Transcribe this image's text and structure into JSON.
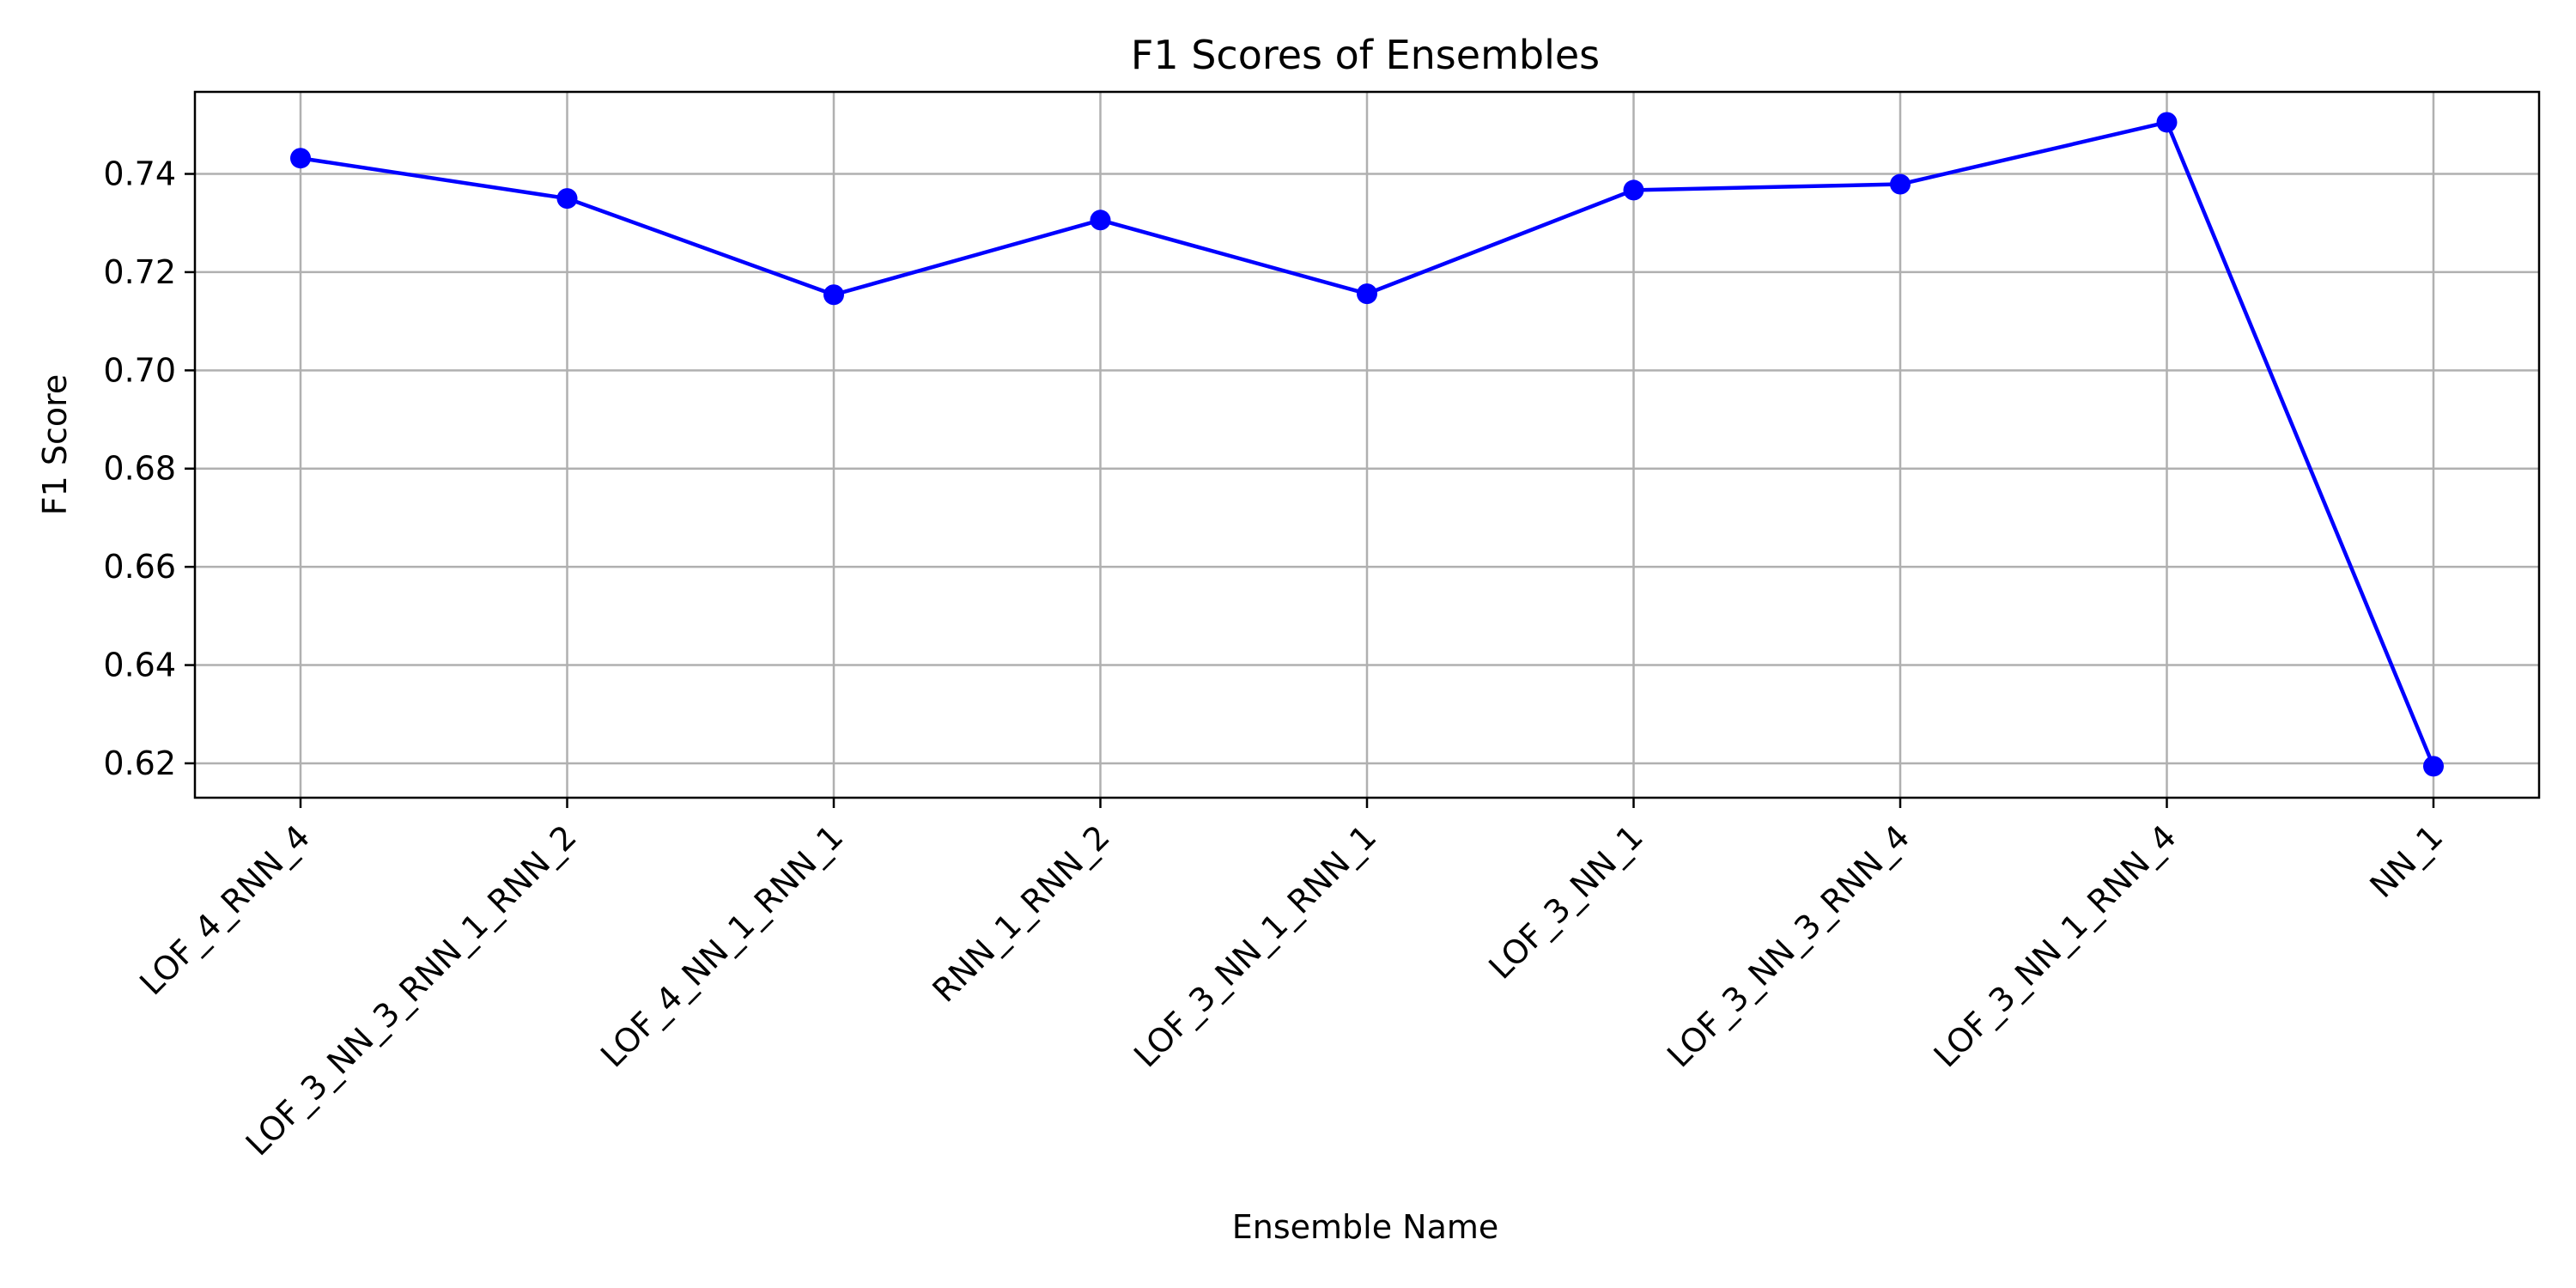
{
  "chart_data": {
    "type": "line",
    "title": "F1 Scores of Ensembles",
    "xlabel": "Ensemble Name",
    "ylabel": "F1 Score",
    "categories": [
      "LOF_4_RNN_4",
      "LOF_3_NN_3_RNN_1_RNN_2",
      "LOF_4_NN_1_RNN_1",
      "RNN_1_RNN_2",
      "LOF_3_NN_1_RNN_1",
      "LOF_3_NN_1",
      "LOF_3_NN_3_RNN_4",
      "LOF_3_NN_1_RNN_4",
      "NN_1"
    ],
    "values": [
      0.7432,
      0.735,
      0.7154,
      0.7306,
      0.7156,
      0.7367,
      0.7379,
      0.7505,
      0.6194
    ],
    "ylim": [
      0.613,
      0.7567
    ],
    "yticks": [
      0.62,
      0.64,
      0.66,
      0.68,
      0.7,
      0.72,
      0.74
    ],
    "ytick_labels": [
      "0.62",
      "0.64",
      "0.66",
      "0.68",
      "0.70",
      "0.72",
      "0.74"
    ],
    "grid": true,
    "marker": "circle",
    "line_color": "#0000ff",
    "marker_color": "#0000ff",
    "grid_color": "#b0b0b0"
  }
}
